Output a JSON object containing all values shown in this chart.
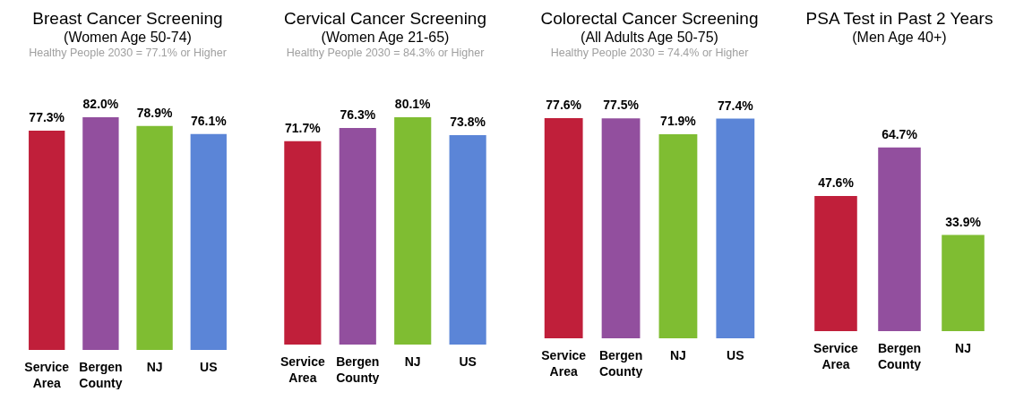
{
  "chart_data": [
    {
      "type": "bar",
      "title": "Breast Cancer Screening",
      "subtitle": "(Women Age 50-74)",
      "annotations": [
        "Healthy People 2030 = 77.1% or Higher"
      ],
      "categories": [
        "Service Area",
        "Bergen County",
        "NJ",
        "US"
      ],
      "values": [
        77.3,
        82.0,
        78.9,
        76.1
      ],
      "colors": [
        "#c01f3a",
        "#924f9e",
        "#7fbd32",
        "#5b85d7"
      ],
      "value_labels": [
        "77.3%",
        "82.0%",
        "78.9%",
        "76.1%"
      ],
      "tick_labels": "x"
    },
    {
      "type": "bar",
      "title": "Cervical Cancer Screening",
      "subtitle": "(Women Age 21-65)",
      "annotations": [
        "Healthy People 2030 = 84.3% or Higher"
      ],
      "categories": [
        "Service Area",
        "Bergen County",
        "NJ",
        "US"
      ],
      "values": [
        71.7,
        76.3,
        80.1,
        73.8
      ],
      "colors": [
        "#c01f3a",
        "#924f9e",
        "#7fbd32",
        "#5b85d7"
      ],
      "value_labels": [
        "71.7%",
        "76.3%",
        "80.1%",
        "73.8%"
      ],
      "tick_labels": "x"
    },
    {
      "type": "bar",
      "title": "Colorectal Cancer Screening",
      "subtitle": "(All Adults Age 50-75)",
      "annotations": [
        "Healthy People 2030 = 74.4% or Higher"
      ],
      "categories": [
        "Service Area",
        "Bergen County",
        "NJ",
        "US"
      ],
      "values": [
        77.6,
        77.5,
        71.9,
        77.4
      ],
      "colors": [
        "#c01f3a",
        "#924f9e",
        "#7fbd32",
        "#5b85d7"
      ],
      "value_labels": [
        "77.6%",
        "77.5%",
        "71.9%",
        "77.4%"
      ],
      "tick_labels": "x"
    },
    {
      "type": "bar",
      "title": "PSA Test in Past 2 Years",
      "subtitle": "(Men Age 40+)",
      "categories": [
        "Service Area",
        "Bergen County",
        "NJ"
      ],
      "values": [
        47.6,
        64.7,
        33.9
      ],
      "colors": [
        "#c01f3a",
        "#924f9e",
        "#7fbd32"
      ],
      "value_labels": [
        "47.6%",
        "64.7%",
        "33.9%"
      ],
      "tick_labels": "x"
    }
  ]
}
